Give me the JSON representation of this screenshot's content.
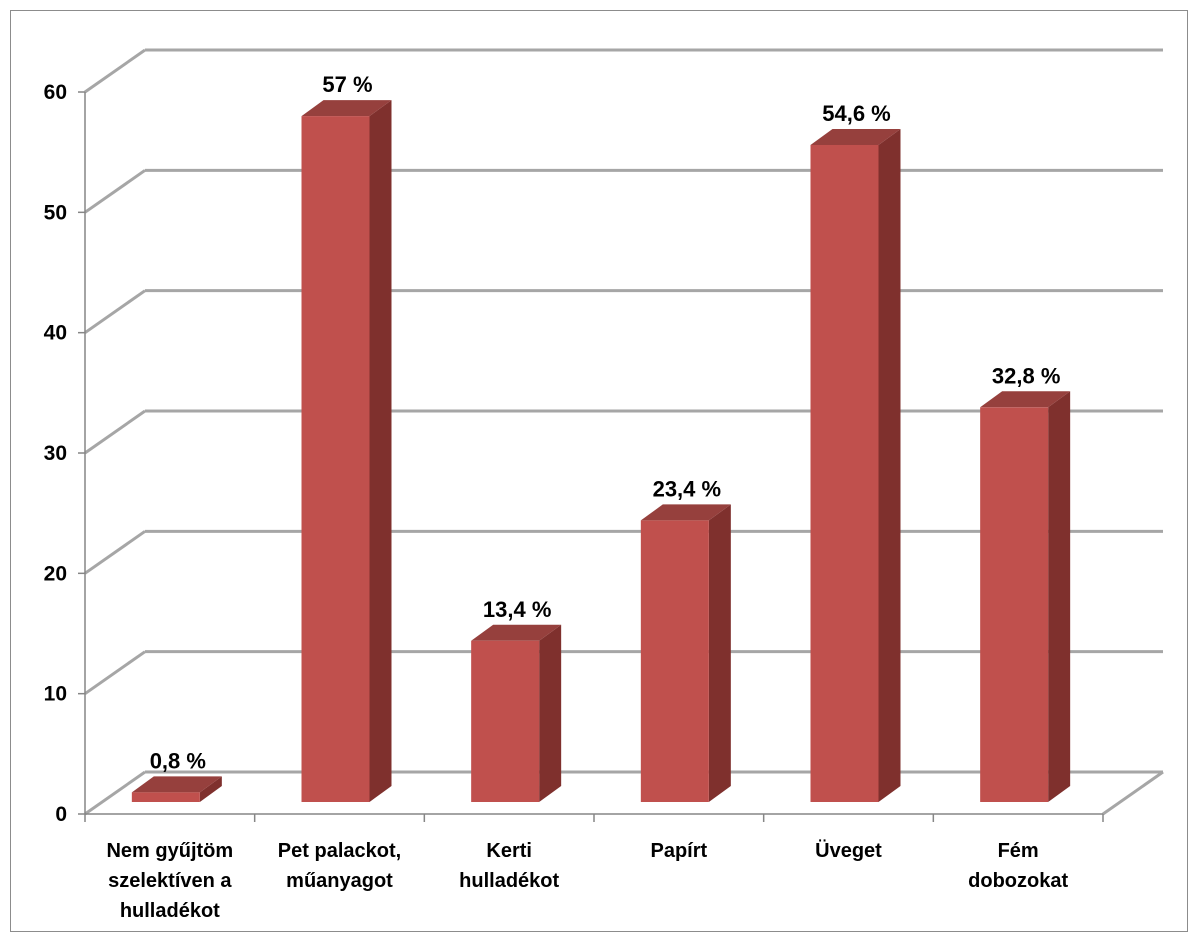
{
  "chart_data": {
    "type": "bar",
    "bar_style": "3d-column",
    "categories": [
      [
        "Nem gyűjtöm",
        "szelektíven a",
        "hulladékot"
      ],
      [
        "Pet palackot,",
        "műanyagot"
      ],
      [
        "Kerti",
        "hulladékot"
      ],
      [
        "Papírt"
      ],
      [
        "Üveget"
      ],
      [
        "Fém",
        "dobozokat"
      ]
    ],
    "values": [
      0.8,
      57,
      13.4,
      23.4,
      54.6,
      32.8
    ],
    "data_labels": [
      "0,8 %",
      "57 %",
      "13,4 %",
      "23,4 %",
      "54,6 %",
      "32,8 %"
    ],
    "yticks": [
      "0",
      "10",
      "20",
      "30",
      "40",
      "50",
      "60"
    ],
    "ylim": [
      0,
      60
    ],
    "grid": true,
    "legend": "none",
    "colors": {
      "bar_front": "#c0504d",
      "bar_side": "#7f302d",
      "bar_top": "#96403d",
      "gridline": "#a6a6a6"
    }
  }
}
